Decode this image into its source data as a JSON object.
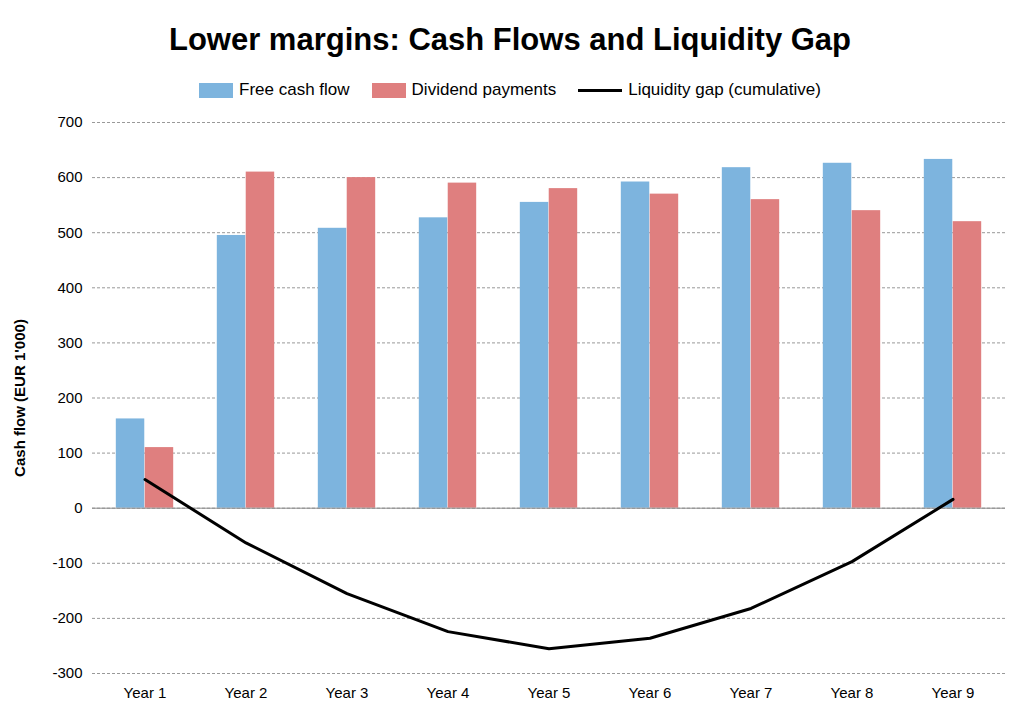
{
  "chart_data": {
    "type": "bar",
    "title": "Lower margins: Cash Flows and Liquidity Gap",
    "y_label": "Cash flow (EUR 1'000)",
    "categories": [
      "Year 1",
      "Year 2",
      "Year 3",
      "Year 4",
      "Year 5",
      "Year 6",
      "Year 7",
      "Year 8",
      "Year 9"
    ],
    "series": [
      {
        "name": "Free cash flow",
        "type": "bar",
        "color": "#7db4de",
        "values": [
          162,
          495,
          508,
          527,
          555,
          592,
          618,
          626,
          633
        ]
      },
      {
        "name": "Dividend payments",
        "type": "bar",
        "color": "#df7f7f",
        "values": [
          110,
          610,
          600,
          590,
          580,
          570,
          560,
          540,
          520
        ]
      },
      {
        "name": "Liquidity gap (cumulative)",
        "type": "line",
        "color": "#000000",
        "values": [
          52,
          -63,
          -155,
          -224,
          -255,
          -236,
          -182,
          -97,
          16
        ]
      }
    ],
    "ylim": [
      -300,
      700
    ],
    "yticks": [
      -300,
      -200,
      -100,
      0,
      100,
      200,
      300,
      400,
      500,
      600,
      700
    ],
    "grid": true,
    "legend": "top"
  }
}
